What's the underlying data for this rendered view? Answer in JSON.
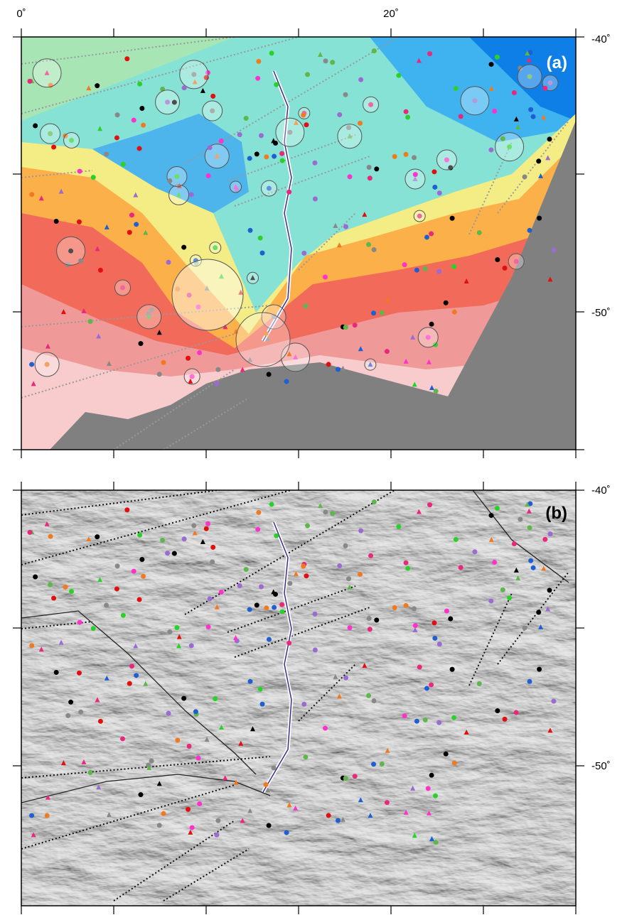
{
  "panels": [
    {
      "label": "(a)",
      "x_labels": [
        "0˚",
        "20˚"
      ],
      "y_labels": [
        "-40˚",
        "-50˚"
      ]
    },
    {
      "label": "(b)",
      "y_labels": [
        "-40˚",
        "-50˚"
      ]
    }
  ]
}
